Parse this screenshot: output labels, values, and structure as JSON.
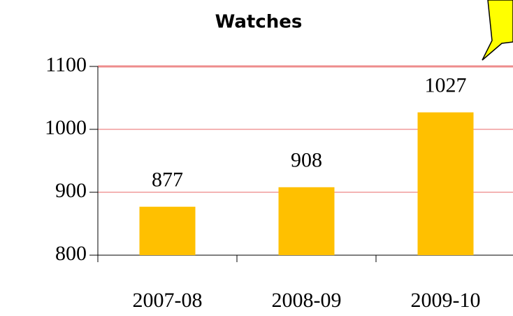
{
  "chart_data": {
    "type": "bar",
    "title": "Watches",
    "categories": [
      "2007-08",
      "2008-09",
      "2009-10"
    ],
    "values": [
      877,
      908,
      1027
    ],
    "color": "#ffc000",
    "ylim": [
      800,
      1100
    ],
    "yticks": [
      800,
      900,
      1000,
      1100
    ],
    "grid": true,
    "grid_color": "#f4b4b4"
  }
}
